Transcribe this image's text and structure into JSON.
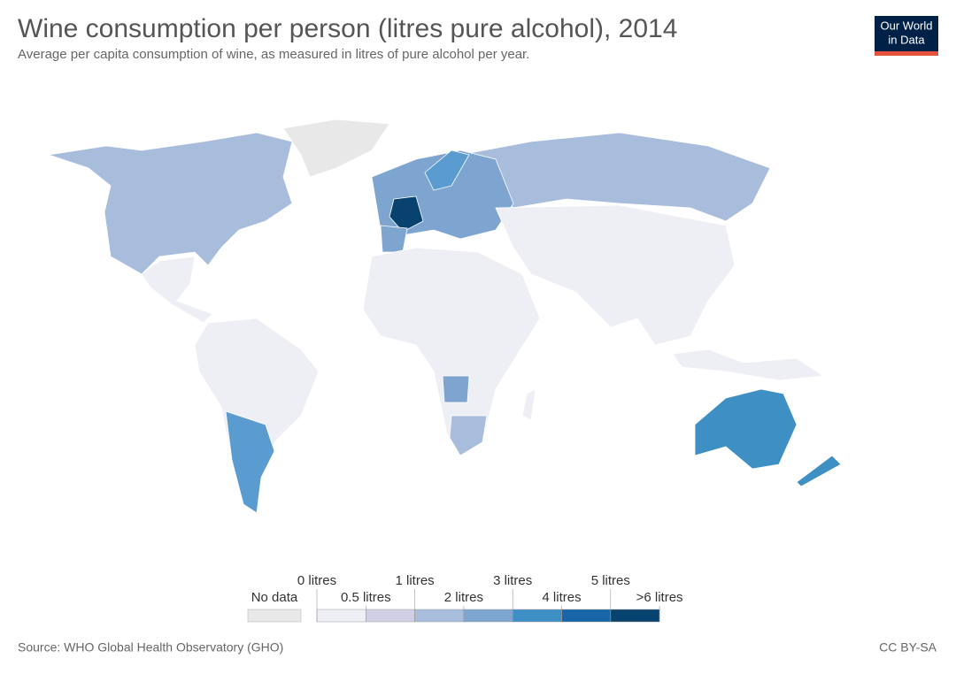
{
  "header": {
    "title": "Wine consumption per person (litres pure alcohol), 2014",
    "subtitle": "Average per capita consumption of wine, as measured in litres of pure alcohol per year."
  },
  "logo": {
    "line1": "Our World",
    "line2": "in Data"
  },
  "legend": {
    "no_data": "No data",
    "no_data_color": "#e8e8e8",
    "upper_labels": [
      "0 litres",
      "1 litres",
      "3 litres",
      "5 litres"
    ],
    "lower_labels": [
      "0.5 litres",
      "2 litres",
      "4 litres",
      ">6 litres"
    ],
    "colors": [
      "#eeeef5",
      "#cfd0e6",
      "#a8bddc",
      "#7ea5cf",
      "#3d8fc4",
      "#1866a8",
      "#08426e"
    ]
  },
  "footer": {
    "source": "Source: WHO Global Health Observatory (GHO)",
    "license": "CC BY-SA"
  }
}
